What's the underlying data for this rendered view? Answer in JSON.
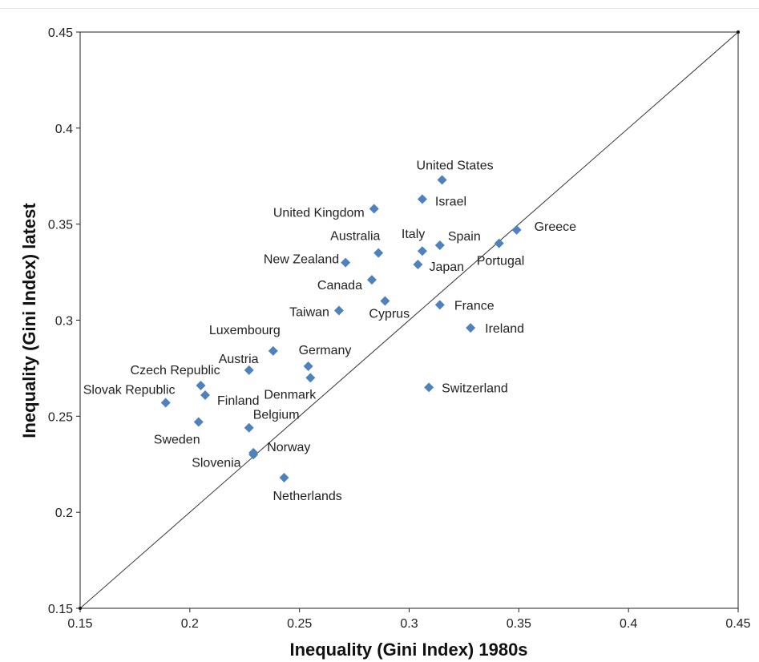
{
  "chart_data": {
    "type": "scatter",
    "xlabel": "Inequality (Gini Index) 1980s",
    "ylabel": "Inequality (Gini Index) latest",
    "xlim": [
      0.15,
      0.45
    ],
    "ylim": [
      0.15,
      0.45
    ],
    "xticks": [
      "0.15",
      "0.2",
      "0.25",
      "0.3",
      "0.35",
      "0.4",
      "0.45"
    ],
    "yticks": [
      "0.15",
      "0.2",
      "0.25",
      "0.3",
      "0.35",
      "0.4",
      "0.45"
    ],
    "grid": false,
    "reference_line": "y = x diagonal",
    "marker_color": "#4f81bd",
    "points": [
      {
        "label": "United States",
        "x": 0.315,
        "y": 0.373
      },
      {
        "label": "Israel",
        "x": 0.306,
        "y": 0.363
      },
      {
        "label": "United Kingdom",
        "x": 0.284,
        "y": 0.358
      },
      {
        "label": "Greece",
        "x": 0.349,
        "y": 0.347
      },
      {
        "label": "Portugal",
        "x": 0.341,
        "y": 0.34
      },
      {
        "label": "Spain",
        "x": 0.314,
        "y": 0.339
      },
      {
        "label": "Italy",
        "x": 0.306,
        "y": 0.336
      },
      {
        "label": "Australia",
        "x": 0.286,
        "y": 0.335
      },
      {
        "label": "New Zealand",
        "x": 0.271,
        "y": 0.33
      },
      {
        "label": "Japan",
        "x": 0.304,
        "y": 0.329
      },
      {
        "label": "Canada",
        "x": 0.283,
        "y": 0.321
      },
      {
        "label": "Cyprus",
        "x": 0.289,
        "y": 0.31
      },
      {
        "label": "France",
        "x": 0.314,
        "y": 0.308
      },
      {
        "label": "Taiwan",
        "x": 0.268,
        "y": 0.305
      },
      {
        "label": "Ireland",
        "x": 0.328,
        "y": 0.296
      },
      {
        "label": "Luxembourg",
        "x": 0.238,
        "y": 0.284
      },
      {
        "label": "Germany",
        "x": 0.254,
        "y": 0.276
      },
      {
        "label": "Austria",
        "x": 0.227,
        "y": 0.274
      },
      {
        "label": "Denmark",
        "x": 0.255,
        "y": 0.27
      },
      {
        "label": "Czech Republic",
        "x": 0.205,
        "y": 0.266
      },
      {
        "label": "Switzerland",
        "x": 0.309,
        "y": 0.265
      },
      {
        "label": "Finland",
        "x": 0.207,
        "y": 0.261
      },
      {
        "label": "Slovak Republic",
        "x": 0.189,
        "y": 0.257
      },
      {
        "label": "Sweden",
        "x": 0.204,
        "y": 0.247
      },
      {
        "label": "Belgium",
        "x": 0.227,
        "y": 0.244
      },
      {
        "label": "Norway",
        "x": 0.229,
        "y": 0.231
      },
      {
        "label": "Slovenia",
        "x": 0.229,
        "y": 0.23
      },
      {
        "label": "Netherlands",
        "x": 0.243,
        "y": 0.218
      }
    ]
  }
}
